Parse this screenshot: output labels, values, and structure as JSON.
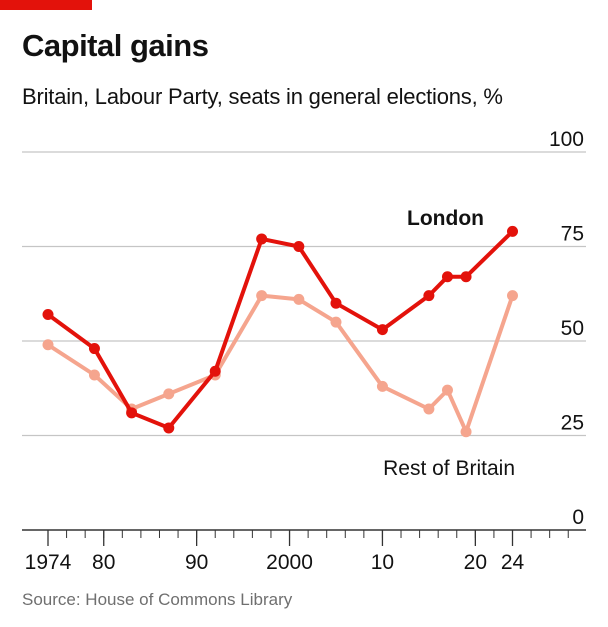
{
  "title": "Capital gains",
  "subtitle": "Britain, Labour Party, seats in general elections, %",
  "source": "Source: House of Commons Library",
  "colors": {
    "accent": "#e3120b",
    "london": "#e3120b",
    "rest": "#f5a58e",
    "grid": "#c5c5c5",
    "axis": "#333333"
  },
  "chart_data": {
    "type": "line",
    "title": "Capital gains",
    "subtitle": "Britain, Labour Party, seats in general elections, %",
    "ylim": [
      0,
      100
    ],
    "yticks": [
      0,
      25,
      50,
      75,
      100
    ],
    "xlim": [
      1973,
      2032
    ],
    "xticks": [
      {
        "value": 1974,
        "label": "1974"
      },
      {
        "value": 1980,
        "label": "80"
      },
      {
        "value": 1990,
        "label": "90"
      },
      {
        "value": 2000,
        "label": "2000"
      },
      {
        "value": 2010,
        "label": "10"
      },
      {
        "value": 2020,
        "label": "20"
      },
      {
        "value": 2024,
        "label": "24"
      }
    ],
    "grid": true,
    "series": [
      {
        "name": "London",
        "color": "#e3120b",
        "x": [
          1974,
          1979,
          1983,
          1987,
          1992,
          1997,
          2001,
          2005,
          2010,
          2015,
          2017,
          2019,
          2024
        ],
        "y": [
          57,
          48,
          31,
          27,
          42,
          77,
          75,
          60,
          53,
          62,
          67,
          67,
          79
        ]
      },
      {
        "name": "Rest of Britain",
        "color": "#f5a58e",
        "x": [
          1974,
          1979,
          1983,
          1987,
          1992,
          1997,
          2001,
          2005,
          2010,
          2015,
          2017,
          2019,
          2024
        ],
        "y": [
          49,
          41,
          32,
          36,
          41,
          62,
          61,
          55,
          38,
          32,
          37,
          26,
          62
        ]
      }
    ]
  }
}
